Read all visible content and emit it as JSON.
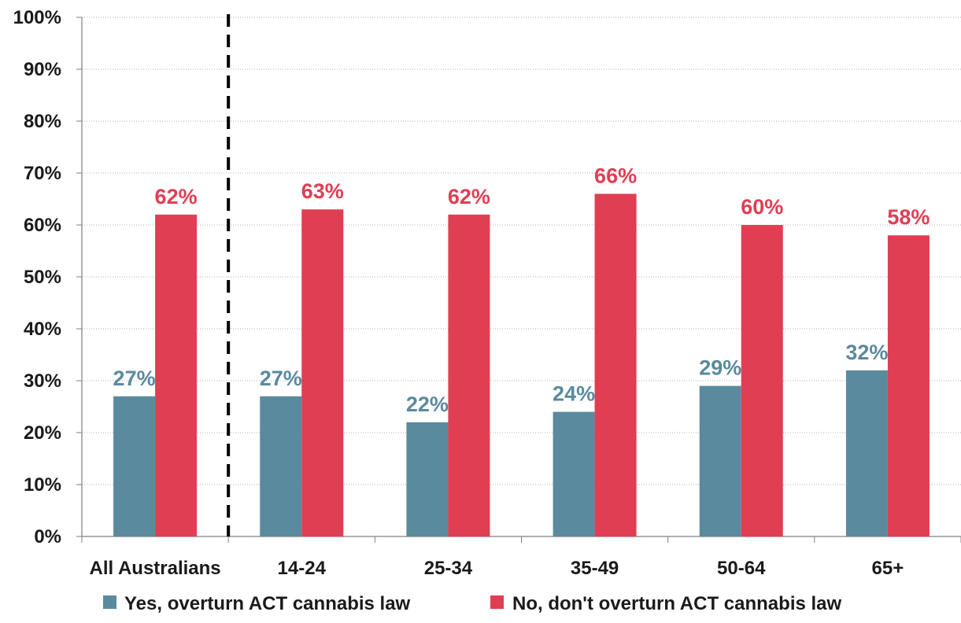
{
  "chart_data": {
    "type": "bar",
    "categories": [
      "All Australians",
      "14-24",
      "25-34",
      "35-49",
      "50-64",
      "65+"
    ],
    "series": [
      {
        "name": "Yes, overturn ACT cannabis law",
        "color": "#5a8a9e",
        "values": [
          27,
          27,
          22,
          24,
          29,
          32
        ],
        "labels": [
          "27%",
          "27%",
          "22%",
          "24%",
          "29%",
          "32%"
        ]
      },
      {
        "name": "No, don't overturn ACT cannabis law",
        "color": "#e03e52",
        "values": [
          62,
          63,
          62,
          66,
          60,
          58
        ],
        "labels": [
          "62%",
          "63%",
          "62%",
          "66%",
          "60%",
          "58%"
        ]
      }
    ],
    "ylim": [
      0,
      100
    ],
    "yticks": [
      0,
      10,
      20,
      30,
      40,
      50,
      60,
      70,
      80,
      90,
      100
    ],
    "ytick_labels": [
      "0%",
      "10%",
      "20%",
      "30%",
      "40%",
      "50%",
      "60%",
      "70%",
      "80%",
      "90%",
      "100%"
    ],
    "grid": true,
    "legend_position": "bottom",
    "separator_after_category": "All Australians"
  }
}
